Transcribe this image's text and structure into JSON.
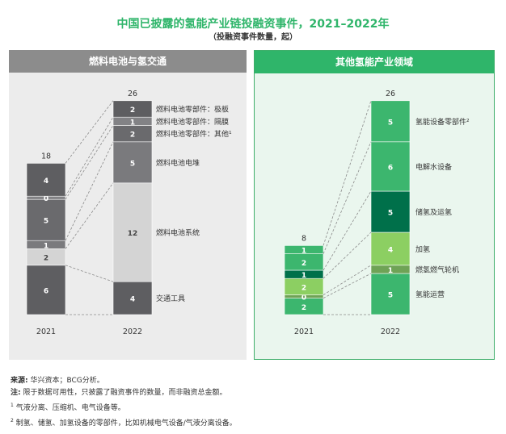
{
  "title": "中国已披露的氢能产业链投融资事件，2021–2022年",
  "subtitle": "（投融资事件数量，起）",
  "left_panel_title": "燃料电池与氢交通",
  "right_panel_title": "其他氢能产业领域",
  "notes": {
    "source_label": "来源:",
    "source_text": "华兴资本；BCG分析。",
    "note_label": "注:",
    "note_text": "限于数据可用性，只披露了融资事件的数量，而非融资总金额。",
    "fn1_mark": "1",
    "fn1_text": "气液分离、压缩机、电气设备等。",
    "fn2_mark": "2",
    "fn2_text": "制氢、储氢、加氢设备的零部件，比如机械电气设备/气液分离设备。"
  },
  "colors": {
    "left": [
      "#5e5e61",
      "#d4d4d4",
      "#7a7a7d",
      "#6a6a6d",
      "#828285"
    ],
    "right": [
      "#3cb66e",
      "#6fa356",
      "#8ccf62",
      "#00704a",
      "#3cb66e"
    ]
  },
  "chart_data": [
    {
      "type": "bar",
      "stacked": true,
      "title": "燃料电池与氢交通",
      "categories": [
        "2021",
        "2022"
      ],
      "totals": [
        18,
        26
      ],
      "series": [
        {
          "name": "交通工具",
          "values": [
            6,
            4
          ]
        },
        {
          "name": "燃料电池系统",
          "values": [
            2,
            12
          ]
        },
        {
          "name": "燃料电池电堆",
          "values": [
            1,
            5
          ]
        },
        {
          "name": "燃料电池零部件：其他¹",
          "values": [
            5,
            2
          ]
        },
        {
          "name": "燃料电池零部件：隔膜",
          "values": [
            0,
            1
          ]
        },
        {
          "name": "燃料电池零部件：极板",
          "values": [
            4,
            2
          ]
        }
      ]
    },
    {
      "type": "bar",
      "stacked": true,
      "title": "其他氢能产业领域",
      "categories": [
        "2021",
        "2022"
      ],
      "totals": [
        8,
        26
      ],
      "series": [
        {
          "name": "氢能运营",
          "values": [
            2,
            5
          ]
        },
        {
          "name": "燃氢燃气轮机",
          "values": [
            0,
            1
          ]
        },
        {
          "name": "加氢",
          "values": [
            2,
            4
          ]
        },
        {
          "name": "储氢及运氢",
          "values": [
            1,
            5
          ]
        },
        {
          "name": "电解水设备",
          "values": [
            2,
            6
          ]
        },
        {
          "name": "氢能设备零部件²",
          "values": [
            1,
            5
          ]
        }
      ]
    }
  ]
}
